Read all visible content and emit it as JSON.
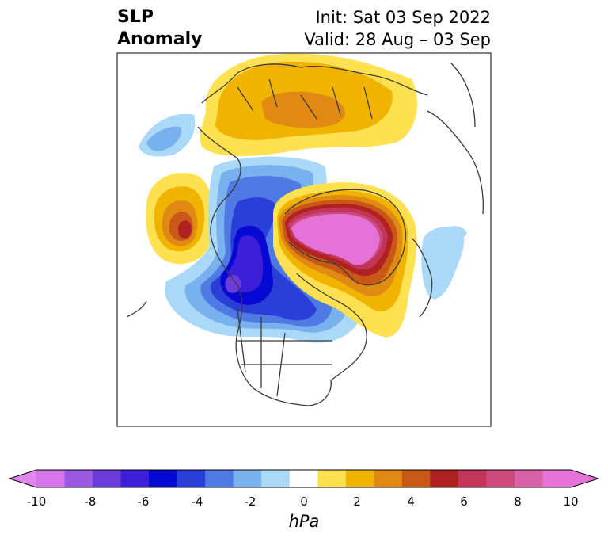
{
  "title": {
    "line1": "SLP",
    "line2": "Anomaly"
  },
  "subtitle": {
    "init": "Init: Sat 03 Sep 2022",
    "valid": "Valid: 28 Aug – 03 Sep"
  },
  "colorbar": {
    "ticks": [
      "-10",
      "-8",
      "-6",
      "-4",
      "-2",
      "0",
      "2",
      "4",
      "6",
      "8",
      "10"
    ],
    "units": "hPa",
    "colors": [
      "#d675ea",
      "#9b58e0",
      "#6c3bdb",
      "#3d1fd9",
      "#0808d3",
      "#2a3ed8",
      "#4f79e3",
      "#79b0ee",
      "#aad9f7",
      "#ffffff",
      "#fee150",
      "#f0b400",
      "#e08a13",
      "#c95716",
      "#b02121",
      "#c23558",
      "#cc4a7c",
      "#d961a6",
      "#e572d6"
    ],
    "extend_low_color": "#e186ec",
    "extend_high_color": "#e572d6"
  }
}
